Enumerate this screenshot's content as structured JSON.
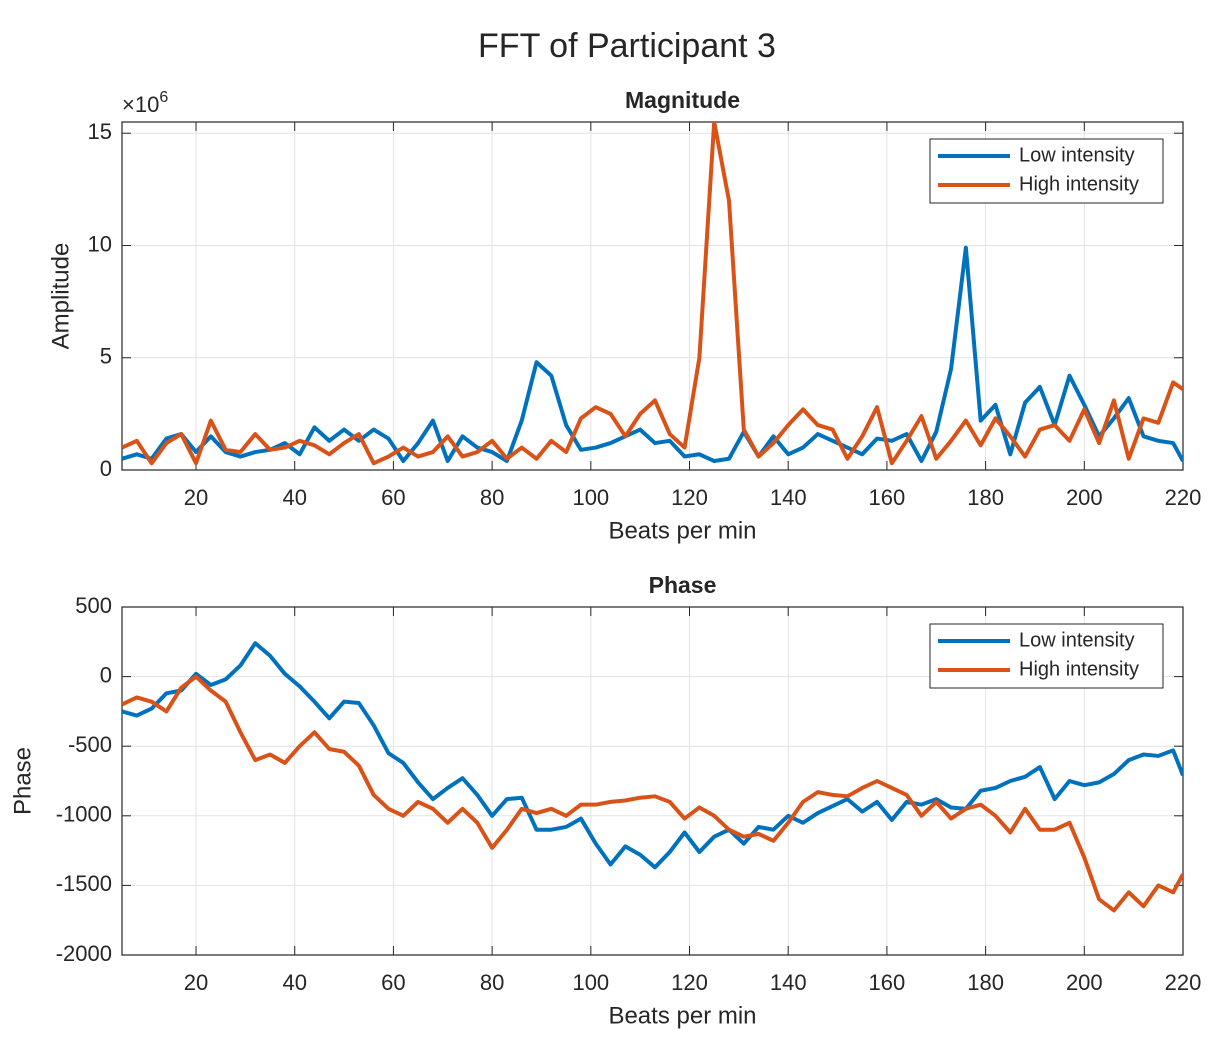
{
  "title": "FFT of Participant 3",
  "chart_data": [
    {
      "type": "line",
      "title": "Magnitude",
      "xlabel": "Beats per min",
      "ylabel": "Amplitude",
      "y_multiplier": {
        "base": "×10",
        "exponent": "6"
      },
      "xlim": [
        5,
        220
      ],
      "xticks": [
        20,
        40,
        60,
        80,
        100,
        120,
        140,
        160,
        180,
        200,
        220
      ],
      "ylim": [
        0,
        15.5
      ],
      "yticks": [
        0,
        5,
        10,
        15
      ],
      "grid": true,
      "legend": "northeast",
      "x": [
        5,
        8,
        11,
        14,
        17,
        20,
        23,
        26,
        29,
        32,
        35,
        38,
        41,
        44,
        47,
        50,
        53,
        56,
        59,
        62,
        65,
        68,
        71,
        74,
        77,
        80,
        83,
        86,
        89,
        92,
        95,
        98,
        101,
        104,
        107,
        110,
        113,
        116,
        119,
        122,
        125,
        128,
        131,
        134,
        137,
        140,
        143,
        146,
        149,
        152,
        155,
        158,
        161,
        164,
        167,
        170,
        173,
        176,
        179,
        182,
        185,
        188,
        191,
        194,
        197,
        200,
        203,
        206,
        209,
        212,
        215,
        218,
        220
      ],
      "series": [
        {
          "name": "Low intensity",
          "color": "#0072BD",
          "values": [
            0.5,
            0.7,
            0.5,
            1.4,
            1.6,
            0.8,
            1.5,
            0.8,
            0.6,
            0.8,
            0.9,
            1.2,
            0.7,
            1.9,
            1.3,
            1.8,
            1.3,
            1.8,
            1.4,
            0.4,
            1.2,
            2.2,
            0.4,
            1.5,
            1.0,
            0.8,
            0.4,
            2.2,
            4.8,
            4.2,
            2.0,
            0.9,
            1.0,
            1.2,
            1.5,
            1.8,
            1.2,
            1.3,
            0.6,
            0.7,
            0.4,
            0.5,
            1.7,
            0.6,
            1.5,
            0.7,
            1.0,
            1.6,
            1.3,
            1.0,
            0.7,
            1.4,
            1.3,
            1.6,
            0.4,
            1.7,
            4.5,
            9.9,
            2.2,
            2.9,
            0.7,
            3.0,
            3.7,
            2.0,
            4.2,
            2.9,
            1.5,
            2.3,
            3.2,
            1.5,
            1.3,
            1.2,
            0.4
          ]
        },
        {
          "name": "High intensity",
          "color": "#D95319",
          "values": [
            1.0,
            1.3,
            0.3,
            1.2,
            1.6,
            0.3,
            2.2,
            0.9,
            0.8,
            1.6,
            0.9,
            1.0,
            1.3,
            1.1,
            0.7,
            1.2,
            1.6,
            0.3,
            0.6,
            1.0,
            0.6,
            0.8,
            1.5,
            0.6,
            0.8,
            1.3,
            0.5,
            1.0,
            0.5,
            1.3,
            0.8,
            2.3,
            2.8,
            2.5,
            1.5,
            2.5,
            3.1,
            1.6,
            1.0,
            5.0,
            15.5,
            12.0,
            1.8,
            0.6,
            1.2,
            2.0,
            2.7,
            2.0,
            1.8,
            0.5,
            1.5,
            2.8,
            0.3,
            1.3,
            2.4,
            0.5,
            1.3,
            2.2,
            1.1,
            2.3,
            1.5,
            0.6,
            1.8,
            2.0,
            1.3,
            2.7,
            1.2,
            3.1,
            0.5,
            2.3,
            2.1,
            3.9,
            3.6
          ]
        }
      ]
    },
    {
      "type": "line",
      "title": "Phase",
      "xlabel": "Beats per min",
      "ylabel": "Phase",
      "xlim": [
        5,
        220
      ],
      "xticks": [
        20,
        40,
        60,
        80,
        100,
        120,
        140,
        160,
        180,
        200,
        220
      ],
      "ylim": [
        -2000,
        500
      ],
      "yticks": [
        -2000,
        -1500,
        -1000,
        -500,
        0,
        500
      ],
      "grid": true,
      "legend": "northeast",
      "x": [
        5,
        8,
        11,
        14,
        17,
        20,
        23,
        26,
        29,
        32,
        35,
        38,
        41,
        44,
        47,
        50,
        53,
        56,
        59,
        62,
        65,
        68,
        71,
        74,
        77,
        80,
        83,
        86,
        89,
        92,
        95,
        98,
        101,
        104,
        107,
        110,
        113,
        116,
        119,
        122,
        125,
        128,
        131,
        134,
        137,
        140,
        143,
        146,
        149,
        152,
        155,
        158,
        161,
        164,
        167,
        170,
        173,
        176,
        179,
        182,
        185,
        188,
        191,
        194,
        197,
        200,
        203,
        206,
        209,
        212,
        215,
        218,
        220
      ],
      "series": [
        {
          "name": "Low intensity",
          "color": "#0072BD",
          "values": [
            -250,
            -280,
            -230,
            -120,
            -100,
            20,
            -60,
            -20,
            80,
            240,
            150,
            20,
            -70,
            -180,
            -300,
            -180,
            -190,
            -350,
            -550,
            -620,
            -760,
            -880,
            -800,
            -730,
            -850,
            -1000,
            -880,
            -870,
            -1100,
            -1100,
            -1080,
            -1020,
            -1200,
            -1350,
            -1220,
            -1280,
            -1370,
            -1260,
            -1120,
            -1260,
            -1150,
            -1100,
            -1200,
            -1080,
            -1100,
            -1000,
            -1050,
            -980,
            -930,
            -880,
            -970,
            -900,
            -1030,
            -900,
            -920,
            -880,
            -940,
            -950,
            -820,
            -800,
            -750,
            -720,
            -650,
            -880,
            -750,
            -780,
            -760,
            -700,
            -600,
            -560,
            -570,
            -530,
            -710
          ]
        },
        {
          "name": "High intensity",
          "color": "#D95319",
          "values": [
            -200,
            -150,
            -180,
            -250,
            -80,
            0,
            -100,
            -180,
            -400,
            -600,
            -560,
            -620,
            -500,
            -400,
            -520,
            -540,
            -640,
            -850,
            -950,
            -1000,
            -900,
            -950,
            -1050,
            -950,
            -1050,
            -1230,
            -1100,
            -950,
            -980,
            -950,
            -1000,
            -920,
            -920,
            -900,
            -890,
            -870,
            -860,
            -900,
            -1020,
            -940,
            -1000,
            -1100,
            -1150,
            -1130,
            -1180,
            -1050,
            -900,
            -830,
            -850,
            -860,
            -800,
            -750,
            -800,
            -850,
            -1000,
            -900,
            -1020,
            -950,
            -920,
            -1000,
            -1120,
            -950,
            -1100,
            -1100,
            -1050,
            -1300,
            -1600,
            -1680,
            -1550,
            -1650,
            -1500,
            -1550,
            -1420
          ]
        }
      ]
    }
  ]
}
